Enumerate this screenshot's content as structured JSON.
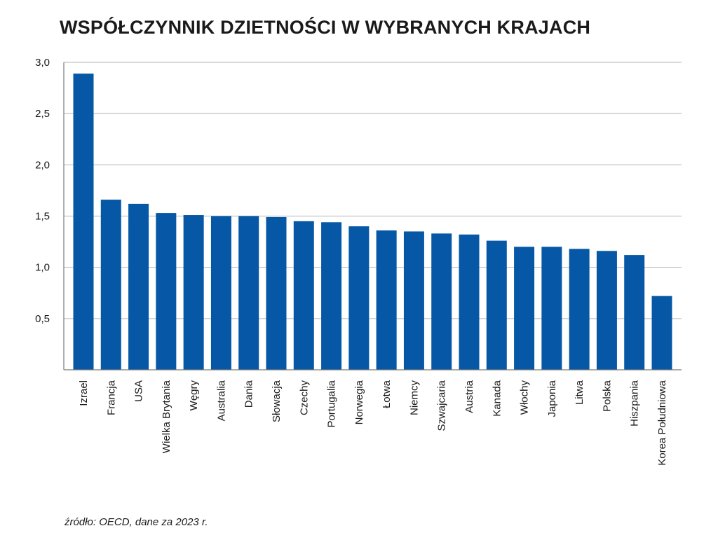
{
  "title": "WSPÓŁCZYNNIK DZIETNOŚCI W WYBRANYCH KRAJACH",
  "source_note": "źródło: OECD, dane za 2023 r.",
  "colors": {
    "bar": "#0658a6",
    "grid": "#b3b3b3",
    "axis": "#7a7a7a",
    "text": "#1a1a1a"
  },
  "chart_data": {
    "type": "bar",
    "title": "WSPÓŁCZYNNIK DZIETNOŚCI W WYBRANYCH KRAJACH",
    "xlabel": "",
    "ylabel": "",
    "ylim": [
      0,
      3.0
    ],
    "grid": true,
    "yticks": [
      0.5,
      1.0,
      1.5,
      2.0,
      2.5,
      3.0
    ],
    "ytick_labels": [
      "0,5",
      "1,0",
      "1,5",
      "2,0",
      "2,5",
      "3,0"
    ],
    "categories": [
      "Izrael",
      "Francja",
      "USA",
      "Wielka Brytania",
      "Węgry",
      "Australia",
      "Dania",
      "Słowacja",
      "Czechy",
      "Portugalia",
      "Norwegia",
      "Łotwa",
      "Niemcy",
      "Szwajcaria",
      "Austria",
      "Kanada",
      "Włochy",
      "Japonia",
      "Litwa",
      "Polska",
      "Hiszpania",
      "Korea Południowa"
    ],
    "values": [
      2.89,
      1.66,
      1.62,
      1.53,
      1.51,
      1.5,
      1.5,
      1.49,
      1.45,
      1.44,
      1.4,
      1.36,
      1.35,
      1.33,
      1.32,
      1.26,
      1.2,
      1.2,
      1.18,
      1.16,
      1.12,
      0.72
    ]
  }
}
